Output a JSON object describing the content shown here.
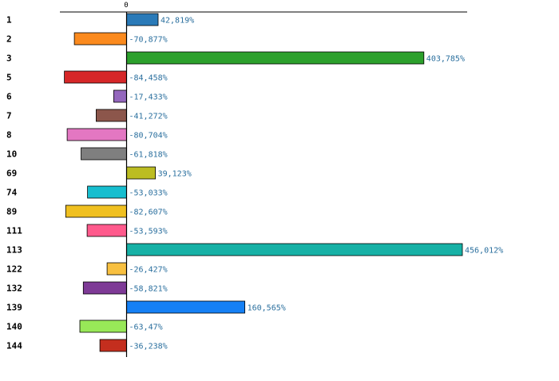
{
  "chart_data": {
    "type": "bar",
    "orientation": "horizontal",
    "grid": false,
    "xlim": [
      -100,
      456.012
    ],
    "x_ticks": [
      "0"
    ],
    "categories": [
      "1",
      "2",
      "3",
      "5",
      "6",
      "7",
      "8",
      "10",
      "69",
      "74",
      "89",
      "111",
      "113",
      "122",
      "132",
      "139",
      "140",
      "144"
    ],
    "values": [
      42.819,
      -70.877,
      403.785,
      -84.458,
      -17.433,
      -41.272,
      -80.704,
      -61.818,
      39.123,
      -53.033,
      -82.607,
      -53.593,
      456.012,
      -26.427,
      -58.821,
      160.565,
      -63.47,
      -36.238
    ],
    "value_labels": [
      "42,819%",
      "-70,877%",
      "403,785%",
      "-84,458%",
      "-17,433%",
      "-41,272%",
      "-80,704%",
      "-61,818%",
      "39,123%",
      "-53,033%",
      "-82,607%",
      "-53,593%",
      "456,012%",
      "-26,427%",
      "-58,821%",
      "160,565%",
      "-63,47%",
      "-36,238%"
    ],
    "colors": [
      "#2a7ab8",
      "#fb8a1e",
      "#2ca02c",
      "#d62728",
      "#9467bd",
      "#8c564b",
      "#e377c2",
      "#7f7f7f",
      "#bcbd22",
      "#17becf",
      "#f0c020",
      "#ff5a8c",
      "#17b1a6",
      "#f8c040",
      "#7e3a96",
      "#1580f5",
      "#98e858",
      "#c42e1e"
    ]
  }
}
